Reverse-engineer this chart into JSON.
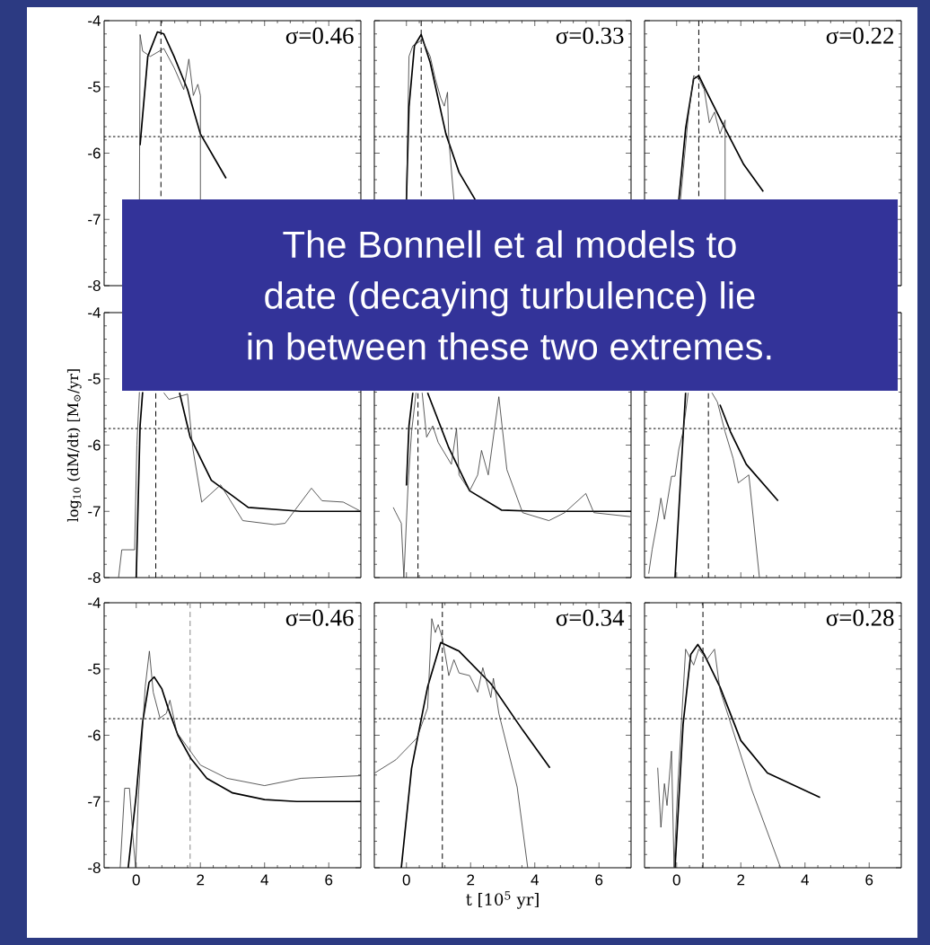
{
  "chart_data": [
    {
      "type": "line",
      "xlim": [
        -1,
        7
      ],
      "ylim": [
        -8,
        -4
      ],
      "xticks": [
        0,
        2,
        4,
        6
      ],
      "yticks": [
        -8,
        -7,
        -6,
        -5,
        -4
      ],
      "tick_labels": "y",
      "series": [
        {
          "color": "#000000",
          "x": [
            0.12,
            0.36,
            0.66,
            0.86,
            1.18,
            1.6,
            2.0,
            2.8
          ],
          "values": [
            -5.88,
            -4.54,
            -4.17,
            -4.2,
            -4.54,
            -5.04,
            -5.71,
            -6.38
          ]
        },
        {
          "color": "#333333",
          "x": [
            0.1,
            0.12,
            0.2,
            0.44,
            0.86,
            1.18,
            1.48,
            1.64,
            1.78,
            1.92,
            2.0,
            2.0
          ],
          "values": [
            -6.7,
            -4.21,
            -4.46,
            -4.54,
            -4.42,
            -4.71,
            -5.04,
            -4.58,
            -5.13,
            -4.96,
            -5.13,
            -6.7
          ]
        }
      ],
      "ref_lines": [
        {
          "axis": "x",
          "value": 0.77,
          "line_style": "dashed",
          "color": "#000000"
        },
        {
          "axis": "y",
          "value": -5.75,
          "line_style": "dotted",
          "color": "#000000"
        }
      ],
      "annotations": [
        "σ=0.46"
      ]
    },
    {
      "type": "line",
      "xlim": [
        -1,
        7
      ],
      "ylim": [
        -8,
        -4
      ],
      "xticks": [
        0,
        2,
        4,
        6
      ],
      "yticks": [
        -8,
        -7,
        -6,
        -5,
        -4
      ],
      "tick_labels": false,
      "series": [
        {
          "color": "#000000",
          "x": [
            0.0,
            0.08,
            0.25,
            0.46,
            0.74,
            1.23,
            1.64,
            2.14
          ],
          "values": [
            -6.7,
            -5.3,
            -4.38,
            -4.21,
            -4.63,
            -5.71,
            -6.29,
            -6.7
          ]
        },
        {
          "color": "#333333",
          "x": [
            0.0,
            0.08,
            0.2,
            0.49,
            0.74,
            0.9,
            1.07,
            1.18,
            1.28,
            1.32,
            1.48
          ],
          "values": [
            -6.7,
            -4.54,
            -4.38,
            -4.29,
            -4.54,
            -4.88,
            -5.17,
            -5.29,
            -5.08,
            -5.79,
            -6.7
          ]
        }
      ],
      "ref_lines": [
        {
          "axis": "x",
          "value": 0.46,
          "line_style": "dashed",
          "color": "#000000"
        },
        {
          "axis": "y",
          "value": -5.75,
          "line_style": "dotted",
          "color": "#000000"
        }
      ],
      "annotations": [
        "σ=0.33"
      ]
    },
    {
      "type": "line",
      "xlim": [
        -1,
        7
      ],
      "ylim": [
        -8,
        -4
      ],
      "xticks": [
        0,
        2,
        4,
        6
      ],
      "yticks": [
        -8,
        -7,
        -6,
        -5,
        -4
      ],
      "tick_labels": false,
      "series": [
        {
          "color": "#000000",
          "x": [
            0.07,
            0.28,
            0.53,
            0.69,
            0.94,
            1.51,
            2.09,
            2.7
          ],
          "values": [
            -6.7,
            -5.63,
            -4.88,
            -4.83,
            -5.08,
            -5.63,
            -6.17,
            -6.58
          ]
        },
        {
          "color": "#333333",
          "x": [
            0.12,
            0.36,
            0.53,
            0.69,
            0.86,
            1.02,
            1.18,
            1.35,
            1.51,
            1.51
          ],
          "values": [
            -6.7,
            -5.46,
            -4.83,
            -4.88,
            -5.04,
            -5.54,
            -5.38,
            -5.71,
            -5.5,
            -6.7
          ]
        }
      ],
      "ref_lines": [
        {
          "axis": "x",
          "value": 0.69,
          "line_style": "dashed",
          "color": "#000000"
        },
        {
          "axis": "y",
          "value": -5.75,
          "line_style": "dotted",
          "color": "#000000"
        }
      ],
      "annotations": [
        "σ=0.22"
      ]
    },
    {
      "type": "line",
      "xlim": [
        -1,
        7
      ],
      "ylim": [
        -8,
        -4
      ],
      "xticks": [
        0,
        2,
        4,
        6
      ],
      "yticks": [
        -8,
        -7,
        -6,
        -5,
        -4
      ],
      "tick_labels": "y",
      "ylabel": "log$_{10}$ (dM/dt) [M$_{⊙}$/yr]",
      "series": [
        {
          "color": "#000000",
          "x": [
            0.0,
            0.12,
            0.2,
            0.8,
            1.35,
            1.68,
            2.34,
            3.49,
            5.13,
            7.0
          ],
          "values": [
            -8,
            -5.71,
            -5.2,
            null,
            -5.21,
            -5.88,
            -6.53,
            -6.94,
            -7.0,
            -7.0
          ]
        },
        {
          "color": "#333333",
          "x": [
            -0.55,
            -0.45,
            -0.05,
            0.02,
            0.1,
            0.5,
            0.86,
            1.02,
            1.6,
            1.76,
            2.04,
            2.63,
            3.32,
            4.31,
            4.64,
            5.46,
            5.79,
            6.45,
            7.0
          ],
          "values": [
            -8,
            -7.58,
            -7.58,
            -6.0,
            -5.2,
            null,
            -5.21,
            -5.31,
            -5.23,
            -6.04,
            -6.86,
            -6.6,
            -7.14,
            -7.2,
            -7.18,
            -6.65,
            -6.84,
            -6.86,
            -7.0
          ]
        }
      ],
      "ref_lines": [
        {
          "axis": "x",
          "value": 0.61,
          "line_style": "dashed",
          "color": "#000000"
        },
        {
          "axis": "y",
          "value": -5.75,
          "line_style": "dotted",
          "color": "#000000"
        }
      ]
    },
    {
      "type": "line",
      "xlim": [
        -1,
        7
      ],
      "ylim": [
        -8,
        -4
      ],
      "xticks": [
        0,
        2,
        4,
        6
      ],
      "yticks": [
        -8,
        -7,
        -6,
        -5,
        -4
      ],
      "tick_labels": false,
      "series": [
        {
          "color": "#000000",
          "x": [
            0.0,
            0.08,
            0.2,
            0.4,
            0.66,
            1.32,
            1.97,
            2.96,
            4.11,
            7.0
          ],
          "values": [
            -6.61,
            -5.71,
            -5.21,
            null,
            -5.21,
            -6.04,
            -6.69,
            -6.98,
            -7.0,
            -7.0
          ]
        },
        {
          "color": "#333333",
          "x": [
            -0.41,
            -0.33,
            -0.16,
            -0.08,
            0.05,
            0.16,
            0.3,
            0.4,
            0.49,
            0.63,
            0.82,
            0.99,
            1.4,
            1.56,
            1.64,
            1.97,
            2.22,
            2.34,
            2.55,
            2.88,
            3.13,
            3.62,
            4.44,
            4.93,
            5.59,
            5.84,
            6.97
          ],
          "values": [
            -6.94,
            -7.02,
            -7.18,
            -8,
            -6.61,
            -5.8,
            -5.21,
            null,
            -5.21,
            -5.88,
            -5.71,
            -5.96,
            -6.29,
            -5.75,
            -6.45,
            -6.69,
            -6.45,
            -6.08,
            -6.45,
            -5.27,
            -6.37,
            -7.02,
            -7.14,
            -7.02,
            -6.73,
            -7.02,
            -7.08
          ]
        }
      ],
      "ref_lines": [
        {
          "axis": "x",
          "value": 0.36,
          "line_style": "dashed",
          "color": "#000000"
        },
        {
          "axis": "y",
          "value": -5.75,
          "line_style": "dotted",
          "color": "#000000"
        }
      ]
    },
    {
      "type": "line",
      "xlim": [
        -1,
        7
      ],
      "ylim": [
        -8,
        -4
      ],
      "xticks": [
        0,
        2,
        4,
        6
      ],
      "yticks": [
        -8,
        -7,
        -6,
        -5,
        -4
      ],
      "tick_labels": false,
      "series": [
        {
          "color": "#000000",
          "x": [
            -0.05,
            0.16,
            0.28,
            0.8,
            1.35,
            1.68,
            2.17,
            3.16
          ],
          "values": [
            -8,
            -6.2,
            -5.21,
            null,
            -5.39,
            -5.8,
            -6.29,
            -6.84
          ]
        },
        {
          "color": "#333333",
          "x": [
            -0.87,
            -0.76,
            -0.59,
            -0.49,
            -0.38,
            -0.16,
            -0.05,
            0.07,
            0.2,
            0.36,
            0.7,
            1.1,
            1.27,
            1.51,
            1.76,
            1.92,
            2.25,
            2.58
          ],
          "values": [
            -7.94,
            -7.57,
            -7.12,
            -6.8,
            -7.12,
            -6.47,
            -6.47,
            -6.06,
            -5.8,
            -5.21,
            null,
            -5.21,
            -5.35,
            -5.8,
            -6.2,
            -6.57,
            -6.45,
            -8
          ]
        }
      ],
      "ref_lines": [
        {
          "axis": "x",
          "value": 0.99,
          "line_style": "dashed",
          "color": "#000000"
        },
        {
          "axis": "y",
          "value": -5.75,
          "line_style": "dotted",
          "color": "#000000"
        }
      ]
    },
    {
      "type": "line",
      "xlim": [
        -1,
        7
      ],
      "ylim": [
        -8,
        -4
      ],
      "xticks": [
        0,
        2,
        4,
        6
      ],
      "yticks": [
        -8,
        -7,
        -6,
        -5,
        -4
      ],
      "series": [
        {
          "color": "#000000",
          "x": [
            -0.25,
            0.0,
            0.2,
            0.4,
            0.56,
            0.8,
            1.0,
            1.3,
            1.7,
            2.2,
            3.0,
            4.0,
            5.0,
            7.0
          ],
          "values": [
            -8,
            -6.9,
            -5.8,
            -5.2,
            -5.12,
            -5.3,
            -5.6,
            -6.0,
            -6.35,
            -6.65,
            -6.87,
            -6.97,
            -7.0,
            -7.0
          ]
        },
        {
          "color": "#333333",
          "x": [
            -0.5,
            -0.36,
            -0.21,
            -0.1,
            -0.02,
            0.07,
            0.28,
            0.41,
            0.53,
            0.74,
            0.94,
            1.05,
            1.27,
            2.0,
            2.83,
            4.0,
            5.13,
            7.0
          ],
          "values": [
            -8,
            -6.8,
            -6.8,
            -7.55,
            -8,
            -6.9,
            -5.27,
            -4.73,
            -5.35,
            -5.74,
            -5.67,
            -5.47,
            -5.96,
            -6.45,
            -6.65,
            -6.76,
            -6.65,
            -6.61
          ]
        }
      ],
      "ref_lines": [
        {
          "axis": "x",
          "value": 1.68,
          "line_style": "dashed",
          "color": "#888888"
        },
        {
          "axis": "y",
          "value": -5.75,
          "line_style": "dotted",
          "color": "#000000"
        }
      ],
      "annotations": [
        "σ=0.46"
      ]
    },
    {
      "type": "line",
      "xlim": [
        -1,
        7
      ],
      "ylim": [
        -8,
        -4
      ],
      "xticks": [
        0,
        2,
        4,
        6
      ],
      "yticks": [
        -8,
        -7,
        -6,
        -5,
        -4
      ],
      "tick_labels": "x",
      "xlabel": "t [10$^{5}$ yr]",
      "series": [
        {
          "color": "#000000",
          "x": [
            -0.16,
            0.16,
            0.66,
            1.07,
            1.64,
            2.63,
            3.62,
            4.47
          ],
          "values": [
            -8,
            -6.5,
            -5.27,
            -4.6,
            -4.73,
            -5.22,
            -5.92,
            -6.49
          ]
        },
        {
          "color": "#333333",
          "x": [
            -0.99,
            -0.33,
            0.33,
            0.66,
            0.79,
            0.9,
            0.99,
            1.12,
            1.32,
            1.48,
            1.64,
            1.97,
            2.22,
            2.38,
            2.63,
            2.71,
            2.88,
            3.45,
            3.78
          ],
          "values": [
            -6.57,
            -6.37,
            -6.04,
            -5.59,
            -4.24,
            -4.45,
            -4.33,
            -4.53,
            -5.1,
            -4.86,
            -5.06,
            -5.1,
            -5.35,
            -4.98,
            -5.43,
            -5.14,
            -5.67,
            -6.78,
            -8
          ]
        }
      ],
      "ref_lines": [
        {
          "axis": "x",
          "value": 1.12,
          "line_style": "dashed",
          "color": "#000000"
        },
        {
          "axis": "y",
          "value": -5.75,
          "line_style": "dotted",
          "color": "#000000"
        }
      ],
      "annotations": [
        "σ=0.34"
      ]
    },
    {
      "type": "line",
      "xlim": [
        -1,
        7
      ],
      "ylim": [
        -8,
        -4
      ],
      "xticks": [
        0,
        2,
        4,
        6
      ],
      "yticks": [
        -8,
        -7,
        -6,
        -5,
        -4
      ],
      "tick_labels": "x",
      "series": [
        {
          "color": "#000000",
          "x": [
            -0.05,
            0.2,
            0.44,
            0.66,
            0.86,
            1.35,
            2.0,
            2.83,
            4.47
          ],
          "values": [
            -8,
            -5.84,
            -4.78,
            -4.63,
            -4.78,
            -5.27,
            -6.08,
            -6.57,
            -6.94
          ]
        },
        {
          "color": "#333333",
          "x": [
            -0.59,
            -0.49,
            -0.38,
            -0.3,
            -0.16,
            -0.08,
            0.03,
            0.28,
            0.53,
            0.69,
            0.94,
            1.18,
            1.35,
            2.34,
            3.24
          ],
          "values": [
            -6.49,
            -7.39,
            -6.73,
            -7.06,
            -6.24,
            -8,
            -6.82,
            -4.7,
            -4.94,
            -4.7,
            -4.86,
            -4.7,
            -5.31,
            -6.82,
            -8
          ]
        }
      ],
      "ref_lines": [
        {
          "axis": "x",
          "value": 0.82,
          "line_style": "dashed",
          "color": "#000000"
        },
        {
          "axis": "y",
          "value": -5.75,
          "line_style": "dotted",
          "color": "#000000"
        }
      ],
      "annotations": [
        "σ=0.28"
      ]
    },
    {
      "type": "other",
      "annotations": [
        "The Bonnell et al models to date (decaying turbulence) lie in between these two extremes."
      ]
    }
  ]
}
